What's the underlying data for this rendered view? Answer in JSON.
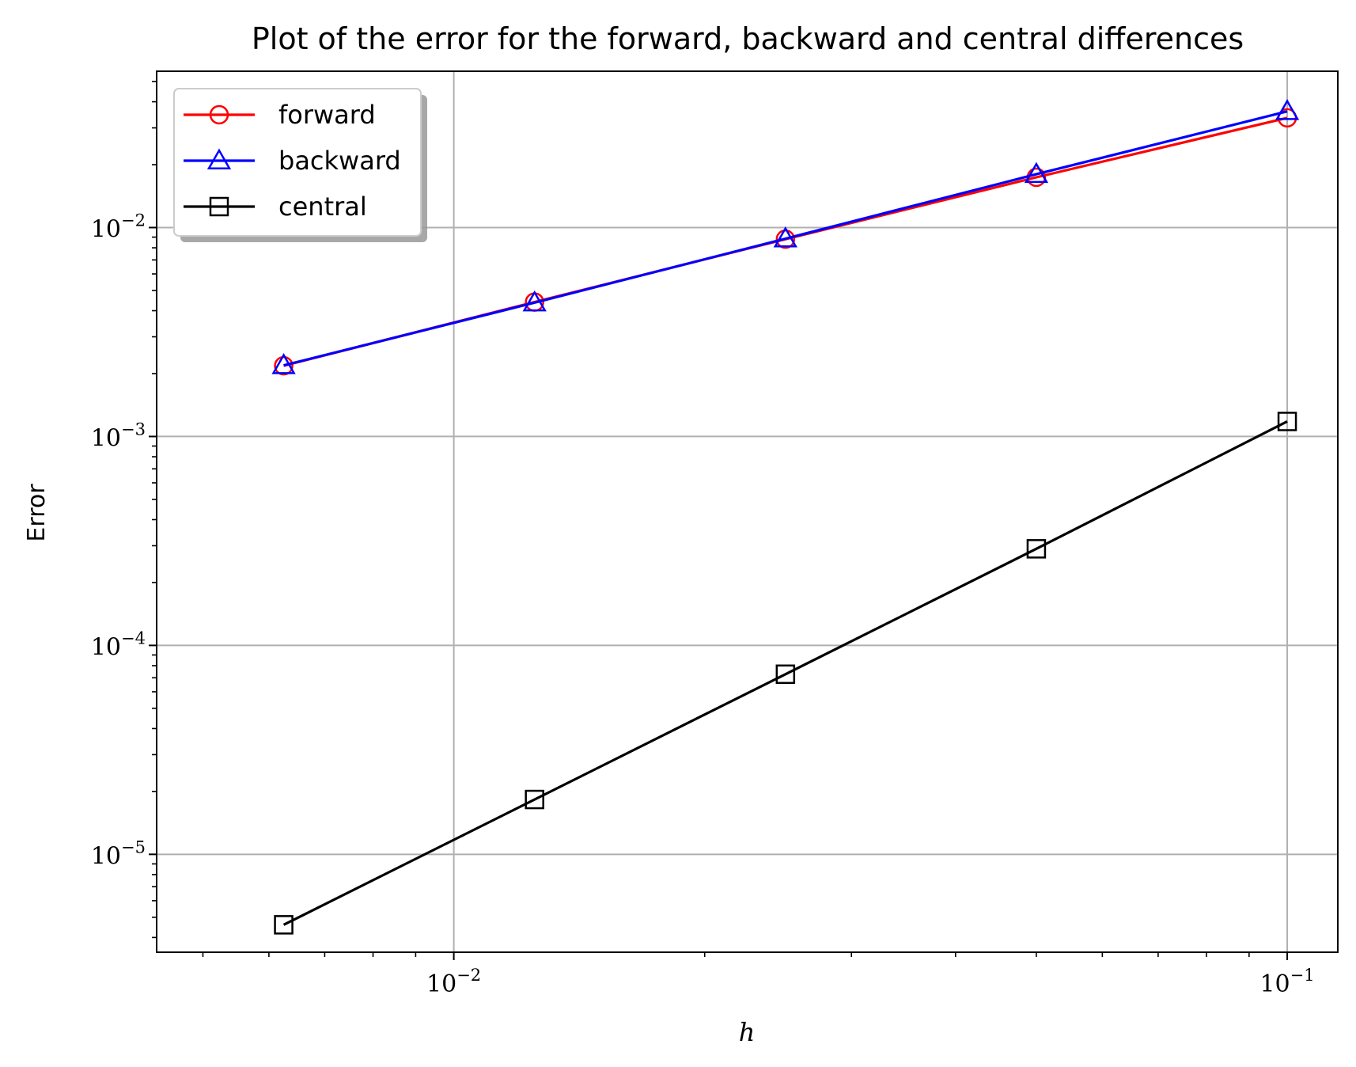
{
  "chart_data": {
    "type": "line",
    "title": "Plot of the error for the forward, backward and central differences",
    "xlabel": "h",
    "ylabel": "Error",
    "xscale": "log",
    "yscale": "log",
    "xlim": [
      0.0044,
      0.115
    ],
    "ylim": [
      3.4e-06,
      0.056
    ],
    "x_ticks": [
      {
        "value": 0.01,
        "base": "10",
        "exp": "−2"
      },
      {
        "value": 0.1,
        "base": "10",
        "exp": "−1"
      }
    ],
    "y_ticks": [
      {
        "value": 1e-05,
        "base": "10",
        "exp": "−5"
      },
      {
        "value": 0.0001,
        "base": "10",
        "exp": "−4"
      },
      {
        "value": 0.001,
        "base": "10",
        "exp": "−3"
      },
      {
        "value": 0.01,
        "base": "10",
        "exp": "−2"
      }
    ],
    "grid": true,
    "legend": "top-left",
    "x": [
      0.00625,
      0.0125,
      0.025,
      0.05,
      0.1
    ],
    "series": [
      {
        "name": "forward",
        "color": "#ff0000",
        "marker": "circle",
        "values": [
          0.00218,
          0.0044,
          0.0088,
          0.0174,
          0.0335
        ]
      },
      {
        "name": "backward",
        "color": "#0000ff",
        "marker": "triangle",
        "values": [
          0.00219,
          0.00437,
          0.00885,
          0.018,
          0.036
        ]
      },
      {
        "name": "central",
        "color": "#000000",
        "marker": "square",
        "values": [
          4.6e-06,
          1.83e-05,
          7.28e-05,
          0.00029,
          0.00118
        ]
      }
    ]
  }
}
